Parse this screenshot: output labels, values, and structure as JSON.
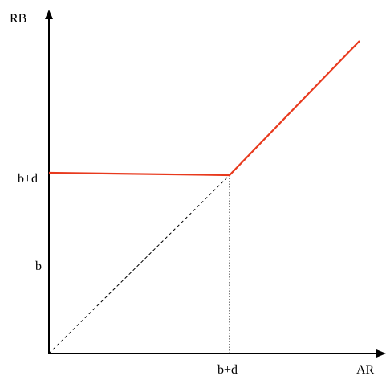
{
  "diagram": {
    "y_axis_label": "RB",
    "x_axis_label": "AR",
    "y_tick_upper": "b+d",
    "y_tick_lower": "b",
    "x_tick": "b+d",
    "colors": {
      "axes": "#000000",
      "payoff_line": "#e8391d",
      "dashed_line": "#000000",
      "dotted_line": "#000000"
    }
  }
}
